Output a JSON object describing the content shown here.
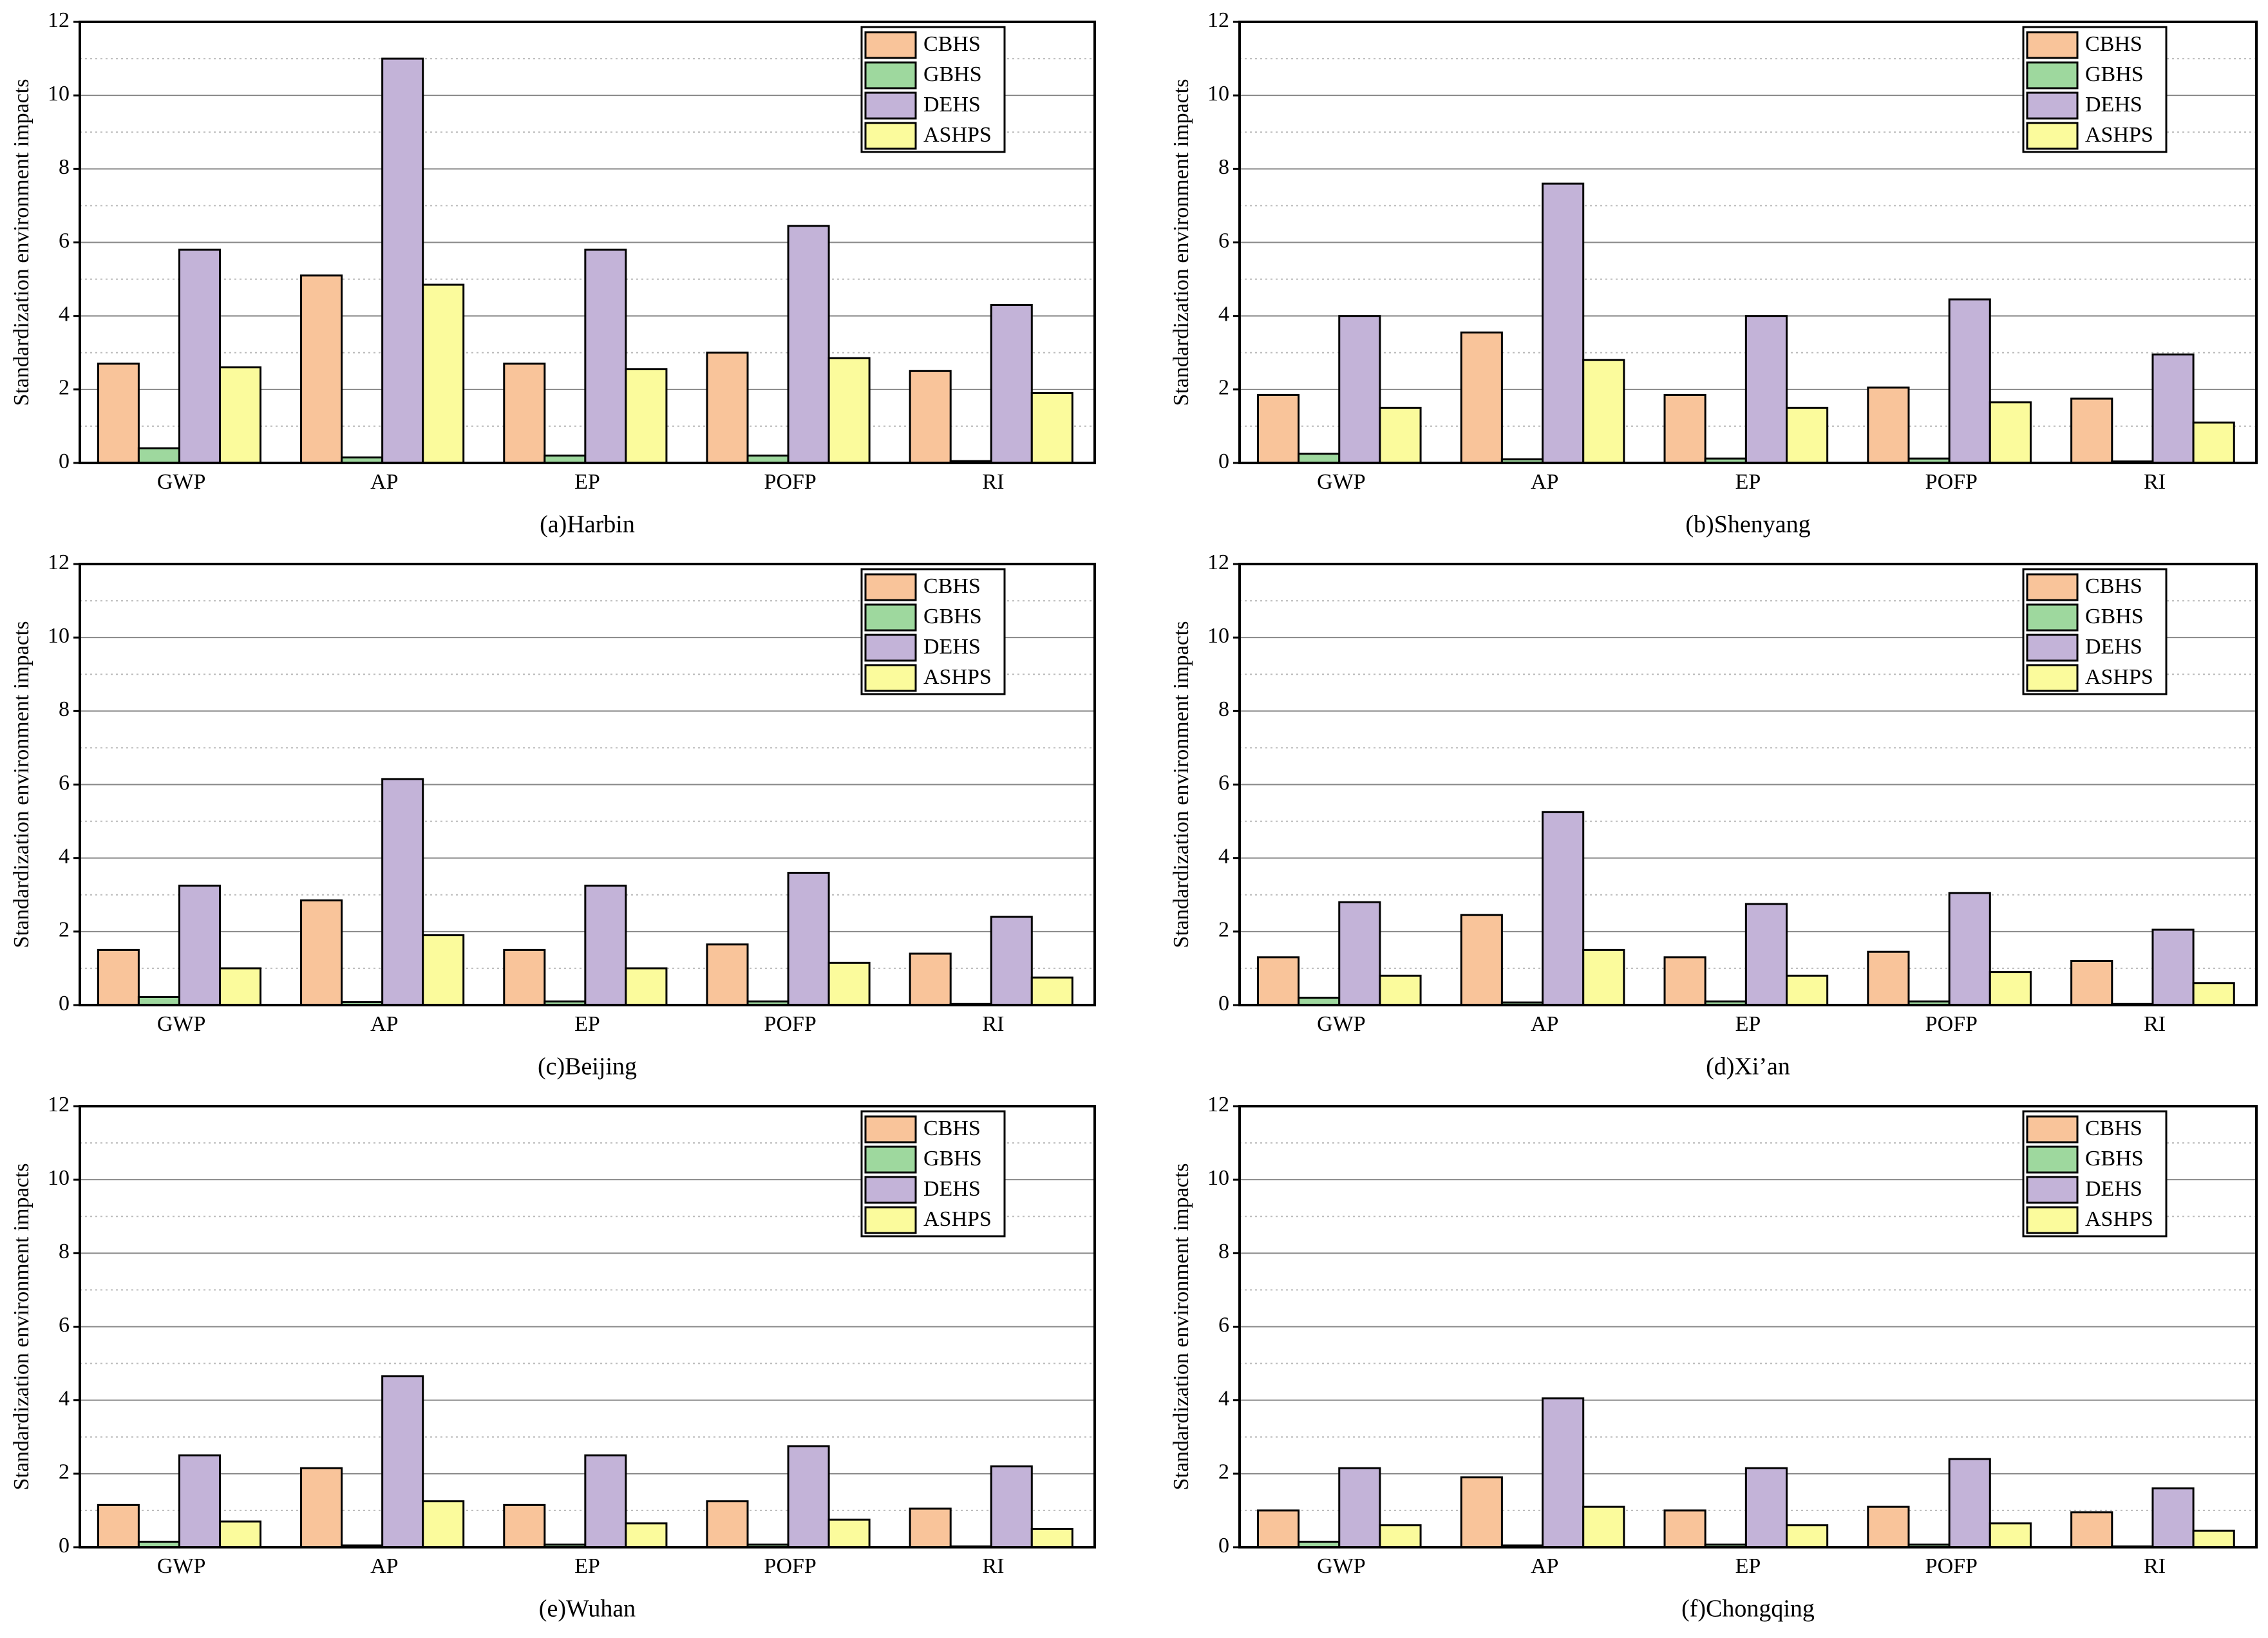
{
  "chart_data": [
    {
      "type": "bar",
      "title": "(a)Harbin",
      "y_label": "Standardization environment impacts",
      "categories": [
        "GWP",
        "AP",
        "EP",
        "POFP",
        "RI"
      ],
      "ylim": [
        0,
        12
      ],
      "yticks": [
        0,
        2,
        4,
        6,
        8,
        10,
        12
      ],
      "minor_yticks": [
        1,
        3,
        5,
        7,
        9,
        11
      ],
      "grid": true,
      "legend": "upper right",
      "series": [
        {
          "name": "CBHS",
          "color": "#f9c49a",
          "values": [
            2.7,
            5.1,
            2.7,
            3.0,
            2.5
          ]
        },
        {
          "name": "GBHS",
          "color": "#9ed89e",
          "values": [
            0.4,
            0.15,
            0.2,
            0.2,
            0.05
          ]
        },
        {
          "name": "DEHS",
          "color": "#c3b3d8",
          "values": [
            5.8,
            11.0,
            5.8,
            6.45,
            4.3
          ]
        },
        {
          "name": "ASHPS",
          "color": "#fbfb9c",
          "values": [
            2.6,
            4.85,
            2.55,
            2.85,
            1.9
          ]
        }
      ]
    },
    {
      "type": "bar",
      "title": "(b)Shenyang",
      "y_label": "Standardization environment impacts",
      "categories": [
        "GWP",
        "AP",
        "EP",
        "POFP",
        "RI"
      ],
      "ylim": [
        0,
        12
      ],
      "yticks": [
        0,
        2,
        4,
        6,
        8,
        10,
        12
      ],
      "minor_yticks": [
        1,
        3,
        5,
        7,
        9,
        11
      ],
      "grid": true,
      "legend": "upper right",
      "series": [
        {
          "name": "CBHS",
          "color": "#f9c49a",
          "values": [
            1.85,
            3.55,
            1.85,
            2.05,
            1.75
          ]
        },
        {
          "name": "GBHS",
          "color": "#9ed89e",
          "values": [
            0.25,
            0.1,
            0.12,
            0.12,
            0.04
          ]
        },
        {
          "name": "DEHS",
          "color": "#c3b3d8",
          "values": [
            4.0,
            7.6,
            4.0,
            4.45,
            2.95
          ]
        },
        {
          "name": "ASHPS",
          "color": "#fbfb9c",
          "values": [
            1.5,
            2.8,
            1.5,
            1.65,
            1.1
          ]
        }
      ]
    },
    {
      "type": "bar",
      "title": "(c)Beijing",
      "y_label": "Standardization environment impacts",
      "categories": [
        "GWP",
        "AP",
        "EP",
        "POFP",
        "RI"
      ],
      "ylim": [
        0,
        12
      ],
      "yticks": [
        0,
        2,
        4,
        6,
        8,
        10,
        12
      ],
      "minor_yticks": [
        1,
        3,
        5,
        7,
        9,
        11
      ],
      "grid": true,
      "legend": "upper right",
      "series": [
        {
          "name": "CBHS",
          "color": "#f9c49a",
          "values": [
            1.5,
            2.85,
            1.5,
            1.65,
            1.4
          ]
        },
        {
          "name": "GBHS",
          "color": "#9ed89e",
          "values": [
            0.22,
            0.08,
            0.1,
            0.1,
            0.03
          ]
        },
        {
          "name": "DEHS",
          "color": "#c3b3d8",
          "values": [
            3.25,
            6.15,
            3.25,
            3.6,
            2.4
          ]
        },
        {
          "name": "ASHPS",
          "color": "#fbfb9c",
          "values": [
            1.0,
            1.9,
            1.0,
            1.15,
            0.75
          ]
        }
      ]
    },
    {
      "type": "bar",
      "title": "(d)Xi’an",
      "y_label": "Standardization environment impacts",
      "categories": [
        "GWP",
        "AP",
        "EP",
        "POFP",
        "RI"
      ],
      "ylim": [
        0,
        12
      ],
      "yticks": [
        0,
        2,
        4,
        6,
        8,
        10,
        12
      ],
      "minor_yticks": [
        1,
        3,
        5,
        7,
        9,
        11
      ],
      "grid": true,
      "legend": "upper right",
      "series": [
        {
          "name": "CBHS",
          "color": "#f9c49a",
          "values": [
            1.3,
            2.45,
            1.3,
            1.45,
            1.2
          ]
        },
        {
          "name": "GBHS",
          "color": "#9ed89e",
          "values": [
            0.2,
            0.07,
            0.1,
            0.1,
            0.03
          ]
        },
        {
          "name": "DEHS",
          "color": "#c3b3d8",
          "values": [
            2.8,
            5.25,
            2.75,
            3.05,
            2.05
          ]
        },
        {
          "name": "ASHPS",
          "color": "#fbfb9c",
          "values": [
            0.8,
            1.5,
            0.8,
            0.9,
            0.6
          ]
        }
      ]
    },
    {
      "type": "bar",
      "title": "(e)Wuhan",
      "y_label": "Standardization environment impacts",
      "categories": [
        "GWP",
        "AP",
        "EP",
        "POFP",
        "RI"
      ],
      "ylim": [
        0,
        12
      ],
      "yticks": [
        0,
        2,
        4,
        6,
        8,
        10,
        12
      ],
      "minor_yticks": [
        1,
        3,
        5,
        7,
        9,
        11
      ],
      "grid": true,
      "legend": "upper right",
      "series": [
        {
          "name": "CBHS",
          "color": "#f9c49a",
          "values": [
            1.15,
            2.15,
            1.15,
            1.25,
            1.05
          ]
        },
        {
          "name": "GBHS",
          "color": "#9ed89e",
          "values": [
            0.15,
            0.05,
            0.07,
            0.07,
            0.02
          ]
        },
        {
          "name": "DEHS",
          "color": "#c3b3d8",
          "values": [
            2.5,
            4.65,
            2.5,
            2.75,
            2.2
          ]
        },
        {
          "name": "ASHPS",
          "color": "#fbfb9c",
          "values": [
            0.7,
            1.25,
            0.65,
            0.75,
            0.5
          ]
        }
      ]
    },
    {
      "type": "bar",
      "title": "(f)Chongqing",
      "y_label": "Standardization environment impacts",
      "categories": [
        "GWP",
        "AP",
        "EP",
        "POFP",
        "RI"
      ],
      "ylim": [
        0,
        12
      ],
      "yticks": [
        0,
        2,
        4,
        6,
        8,
        10,
        12
      ],
      "minor_yticks": [
        1,
        3,
        5,
        7,
        9,
        11
      ],
      "grid": true,
      "legend": "upper right",
      "series": [
        {
          "name": "CBHS",
          "color": "#f9c49a",
          "values": [
            1.0,
            1.9,
            1.0,
            1.1,
            0.95
          ]
        },
        {
          "name": "GBHS",
          "color": "#9ed89e",
          "values": [
            0.15,
            0.05,
            0.07,
            0.07,
            0.02
          ]
        },
        {
          "name": "DEHS",
          "color": "#c3b3d8",
          "values": [
            2.15,
            4.05,
            2.15,
            2.4,
            1.6
          ]
        },
        {
          "name": "ASHPS",
          "color": "#fbfb9c",
          "values": [
            0.6,
            1.1,
            0.6,
            0.65,
            0.45
          ]
        }
      ]
    }
  ]
}
